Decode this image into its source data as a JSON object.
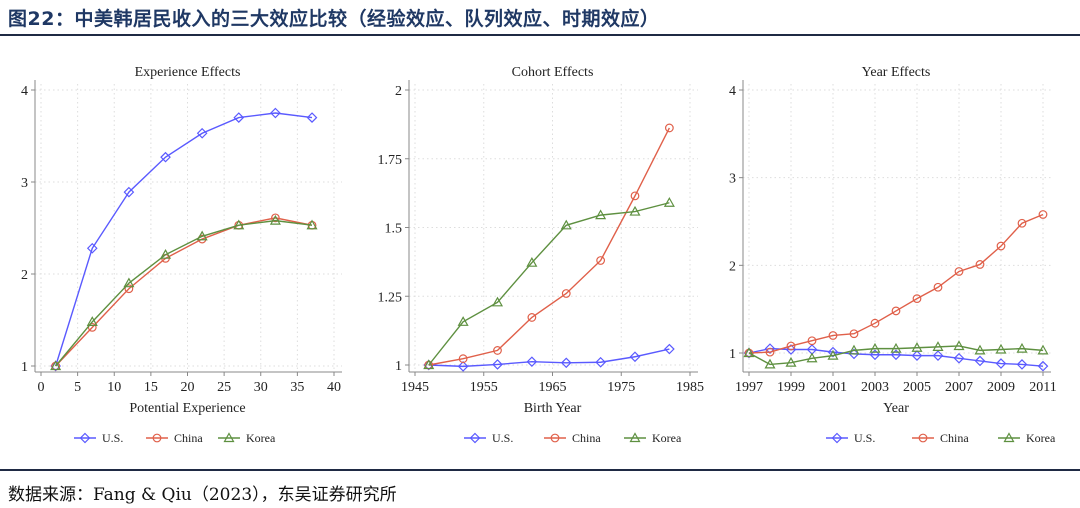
{
  "figure_title": "图22：中美韩居民收入的三大效应比较（经验效应、队列效应、时期效应）",
  "source": "数据来源：Fang & Qiu（2023），东吴证券研究所",
  "colors": {
    "U.S.": "#5a5aff",
    "China": "#e0604a",
    "Korea": "#5e9040"
  },
  "chart_data": [
    {
      "type": "line",
      "title": "Experience Effects",
      "xlabel": "Potential Experience",
      "ylabel": "",
      "xlim": [
        0,
        40
      ],
      "ylim": [
        1,
        4
      ],
      "xticks": [
        0,
        5,
        10,
        15,
        20,
        25,
        30,
        35,
        40
      ],
      "yticks": [
        1,
        2,
        3,
        4
      ],
      "ytick_labels": [
        "1",
        "2",
        "3",
        "4"
      ],
      "grid": true,
      "legend": "bottom",
      "x": [
        2,
        7,
        12,
        17,
        22,
        27,
        32,
        37
      ],
      "series": [
        {
          "name": "U.S.",
          "marker": "diamond",
          "values": [
            1,
            2.28,
            2.89,
            3.27,
            3.53,
            3.7,
            3.75,
            3.7
          ]
        },
        {
          "name": "China",
          "marker": "circle",
          "values": [
            1,
            1.42,
            1.84,
            2.17,
            2.38,
            2.53,
            2.61,
            2.53
          ]
        },
        {
          "name": "Korea",
          "marker": "triangle",
          "values": [
            1,
            1.48,
            1.9,
            2.21,
            2.41,
            2.53,
            2.58,
            2.53
          ]
        }
      ]
    },
    {
      "type": "line",
      "title": "Cohort Effects",
      "xlabel": "Birth Year",
      "ylabel": "",
      "xlim": [
        1945,
        1985
      ],
      "ylim": [
        1,
        2
      ],
      "xticks": [
        1945,
        1955,
        1965,
        1975,
        1985
      ],
      "yticks": [
        1,
        1.25,
        1.5,
        1.75,
        2
      ],
      "ytick_labels": [
        "1",
        "1.25",
        "1.5",
        "1.75",
        "2"
      ],
      "grid": true,
      "legend": "bottom",
      "x": [
        1947,
        1952,
        1957,
        1962,
        1967,
        1972,
        1977,
        1982
      ],
      "series": [
        {
          "name": "U.S.",
          "marker": "diamond",
          "values": [
            1,
            0.995,
            1.002,
            1.012,
            1.008,
            1.01,
            1.03,
            1.058
          ]
        },
        {
          "name": "China",
          "marker": "circle",
          "values": [
            1,
            1.023,
            1.053,
            1.173,
            1.26,
            1.38,
            1.615,
            1.862
          ]
        },
        {
          "name": "Korea",
          "marker": "triangle",
          "values": [
            1,
            1.157,
            1.228,
            1.372,
            1.508,
            1.545,
            1.558,
            1.59
          ]
        }
      ]
    },
    {
      "type": "line",
      "title": "Year Effects",
      "xlabel": "Year",
      "ylabel": "",
      "xlim": [
        1997,
        2011
      ],
      "ylim": [
        1,
        4
      ],
      "xticks": [
        1997,
        1999,
        2001,
        2003,
        2005,
        2007,
        2009,
        2011
      ],
      "yticks": [
        1,
        2,
        3,
        4
      ],
      "ytick_labels": [
        "1",
        "2",
        "3",
        "4"
      ],
      "grid": true,
      "legend": "bottom",
      "x": [
        1997,
        1998,
        1999,
        2000,
        2001,
        2002,
        2003,
        2004,
        2005,
        2006,
        2007,
        2008,
        2009,
        2010,
        2011
      ],
      "series": [
        {
          "name": "U.S.",
          "marker": "diamond",
          "values": [
            1,
            1.05,
            1.04,
            1.04,
            1.01,
            0.99,
            0.98,
            0.98,
            0.97,
            0.97,
            0.94,
            0.91,
            0.88,
            0.87,
            0.85
          ]
        },
        {
          "name": "China",
          "marker": "circle",
          "values": [
            1,
            1.01,
            1.08,
            1.14,
            1.2,
            1.22,
            1.34,
            1.48,
            1.62,
            1.75,
            1.93,
            2.01,
            2.22,
            2.48,
            2.58
          ]
        },
        {
          "name": "Korea",
          "marker": "triangle",
          "values": [
            1,
            0.87,
            0.89,
            0.94,
            0.97,
            1.03,
            1.05,
            1.05,
            1.06,
            1.07,
            1.08,
            1.03,
            1.04,
            1.05,
            1.03
          ]
        }
      ]
    }
  ]
}
